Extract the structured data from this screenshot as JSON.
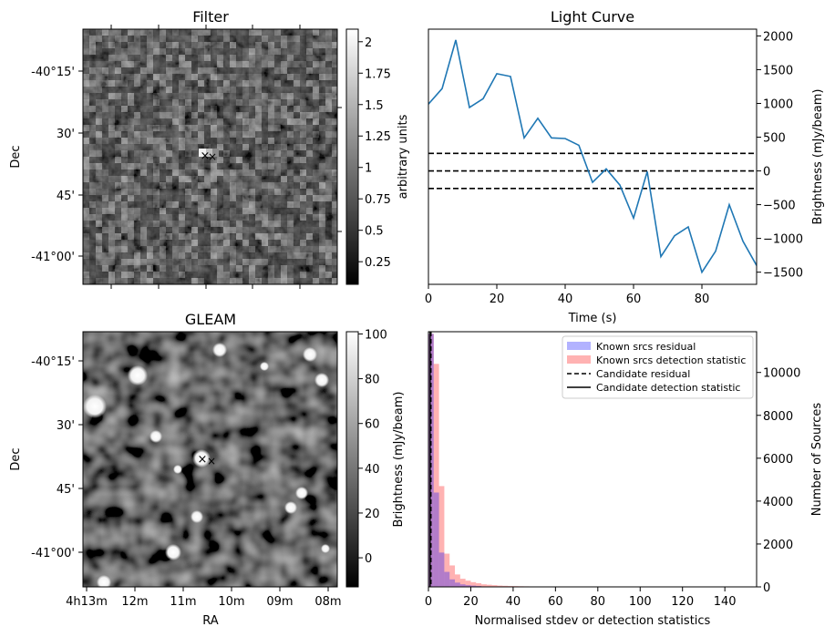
{
  "figure": {
    "filter_panel": {
      "title": "Filter",
      "ylabel": "Dec",
      "dec_ticks": [
        "-40°15'",
        "30'",
        "45'",
        "-41°00'"
      ],
      "colorbar_label": "arbitrary units",
      "colorbar_ticks": [
        "0.25",
        "0.50",
        "0.75",
        "1.00",
        "1.25",
        "1.50",
        "1.75",
        "2.00"
      ],
      "colorbar_range": [
        0.07,
        2.1
      ],
      "colormap": "gray"
    },
    "gleam_panel": {
      "title": "GLEAM",
      "xlabel": "RA",
      "ylabel": "Dec",
      "ra_ticks": [
        "4h13m",
        "12m",
        "11m",
        "10m",
        "09m",
        "08m"
      ],
      "dec_ticks": [
        "-40°15'",
        "30'",
        "45'",
        "-41°00'"
      ],
      "colorbar_label": "Brightness (mJy/beam)",
      "colorbar_ticks": [
        "0",
        "20",
        "40",
        "60",
        "80",
        "100"
      ],
      "colorbar_range": [
        -13,
        101
      ],
      "colormap": "gray"
    },
    "markers": {
      "candidate_marker": "×",
      "candidate_color": "#0000ff",
      "known_color": "#ff0000"
    }
  },
  "chart_data": [
    {
      "type": "line",
      "title": "Light Curve",
      "xlabel": "Time (s)",
      "ylabel": "Brightness (mJy/beam)",
      "xlim": [
        0,
        96
      ],
      "ylim": [
        -1680,
        2100
      ],
      "x_ticks": [
        0,
        20,
        40,
        60,
        80
      ],
      "y_ticks": [
        -1500,
        -1000,
        -500,
        0,
        500,
        1000,
        1500,
        2000
      ],
      "color": "#1f77b4",
      "x": [
        0,
        4,
        8,
        12,
        16,
        20,
        24,
        28,
        32,
        36,
        40,
        44,
        48,
        52,
        56,
        60,
        64,
        68,
        72,
        76,
        80,
        84,
        88,
        92,
        96
      ],
      "values": [
        990,
        1220,
        1940,
        940,
        1070,
        1440,
        1400,
        490,
        780,
        490,
        480,
        380,
        -170,
        30,
        -210,
        -700,
        -10,
        -1270,
        -960,
        -830,
        -1500,
        -1190,
        -500,
        -1040,
        -1400
      ],
      "hlines": [
        260,
        0,
        -260
      ],
      "hline_style": "dashed"
    },
    {
      "type": "histogram",
      "xlabel": "Normalised stdev or detection statistics",
      "ylabel": "Number of Sources",
      "xlim": [
        0,
        155
      ],
      "ylim": [
        0,
        11900
      ],
      "x_ticks": [
        0,
        20,
        40,
        60,
        80,
        100,
        120,
        140
      ],
      "y_ticks": [
        0,
        2000,
        4000,
        6000,
        8000,
        10000
      ],
      "bin_width": 2.5,
      "series": [
        {
          "name": "Known srcs residual",
          "color": "#0000ff",
          "counts": [
            11800,
            4400,
            1600,
            700,
            350,
            200,
            120,
            80,
            60,
            40
          ]
        },
        {
          "name": "Known srcs detection statistic",
          "color": "#ff0000",
          "counts": [
            11800,
            10400,
            4700,
            1550,
            1000,
            580,
            380,
            290,
            220,
            170,
            120,
            100,
            80,
            60,
            50,
            40,
            35,
            30,
            25,
            20,
            18,
            16,
            14,
            12,
            10,
            10,
            8,
            8,
            6,
            6,
            5,
            5,
            5,
            4,
            4,
            4,
            3,
            3,
            3,
            3
          ]
        }
      ],
      "vlines": [
        {
          "name": "Candidate residual",
          "x": 1.2,
          "style": "dashed"
        },
        {
          "name": "Candidate detection statistic",
          "x": 0.8,
          "style": "solid"
        }
      ],
      "legend_placement": "top-right"
    }
  ]
}
